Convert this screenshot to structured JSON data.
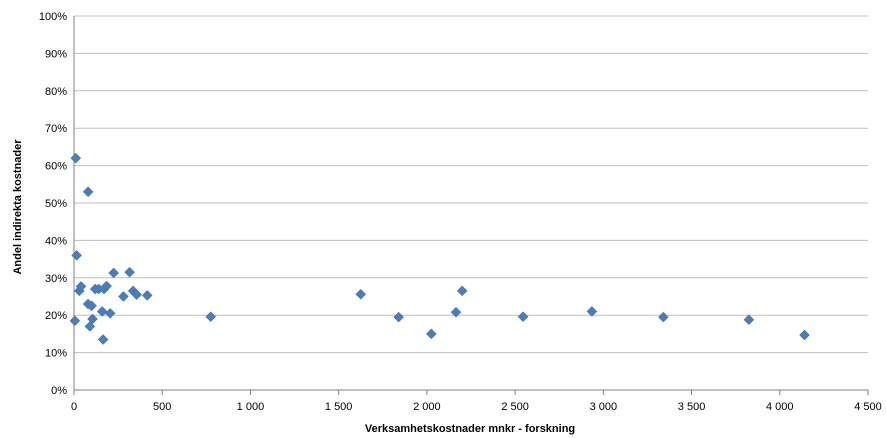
{
  "chart_data": {
    "type": "scatter",
    "title": "",
    "xlabel": "Verksamhetskostnader mnkr - forskning",
    "ylabel": "Andel indirekta kostnader",
    "xlim": [
      0,
      4500
    ],
    "ylim": [
      0,
      1.0
    ],
    "x_ticks": [
      0,
      500,
      1000,
      1500,
      2000,
      2500,
      3000,
      3500,
      4000,
      4500
    ],
    "x_tick_labels": [
      "0",
      "500",
      "1 000",
      "1 500",
      "2 000",
      "2 500",
      "3 000",
      "3 500",
      "4 000",
      "4 500"
    ],
    "y_ticks": [
      0,
      0.1,
      0.2,
      0.3,
      0.4,
      0.5,
      0.6,
      0.7,
      0.8,
      0.9,
      1.0
    ],
    "y_tick_labels": [
      "0%",
      "10%",
      "20%",
      "30%",
      "40%",
      "50%",
      "60%",
      "70%",
      "80%",
      "90%",
      "100%"
    ],
    "grid": "horizontal",
    "legend": "none",
    "marker_color": "#4a7ebb",
    "marker_shape": "diamond",
    "points": [
      {
        "x": 5,
        "y": 0.185
      },
      {
        "x": 10,
        "y": 0.62
      },
      {
        "x": 15,
        "y": 0.36
      },
      {
        "x": 30,
        "y": 0.265
      },
      {
        "x": 40,
        "y": 0.277
      },
      {
        "x": 80,
        "y": 0.23
      },
      {
        "x": 80,
        "y": 0.53
      },
      {
        "x": 90,
        "y": 0.17
      },
      {
        "x": 100,
        "y": 0.225
      },
      {
        "x": 105,
        "y": 0.19
      },
      {
        "x": 120,
        "y": 0.27
      },
      {
        "x": 140,
        "y": 0.27
      },
      {
        "x": 160,
        "y": 0.21
      },
      {
        "x": 165,
        "y": 0.135
      },
      {
        "x": 170,
        "y": 0.27
      },
      {
        "x": 185,
        "y": 0.278
      },
      {
        "x": 205,
        "y": 0.205
      },
      {
        "x": 225,
        "y": 0.313
      },
      {
        "x": 280,
        "y": 0.25
      },
      {
        "x": 315,
        "y": 0.315
      },
      {
        "x": 335,
        "y": 0.265
      },
      {
        "x": 355,
        "y": 0.255
      },
      {
        "x": 415,
        "y": 0.253
      },
      {
        "x": 775,
        "y": 0.196
      },
      {
        "x": 1625,
        "y": 0.256
      },
      {
        "x": 1840,
        "y": 0.195
      },
      {
        "x": 2025,
        "y": 0.15
      },
      {
        "x": 2165,
        "y": 0.208
      },
      {
        "x": 2200,
        "y": 0.265
      },
      {
        "x": 2545,
        "y": 0.196
      },
      {
        "x": 2935,
        "y": 0.21
      },
      {
        "x": 3340,
        "y": 0.195
      },
      {
        "x": 3825,
        "y": 0.188
      },
      {
        "x": 4140,
        "y": 0.147
      }
    ]
  }
}
